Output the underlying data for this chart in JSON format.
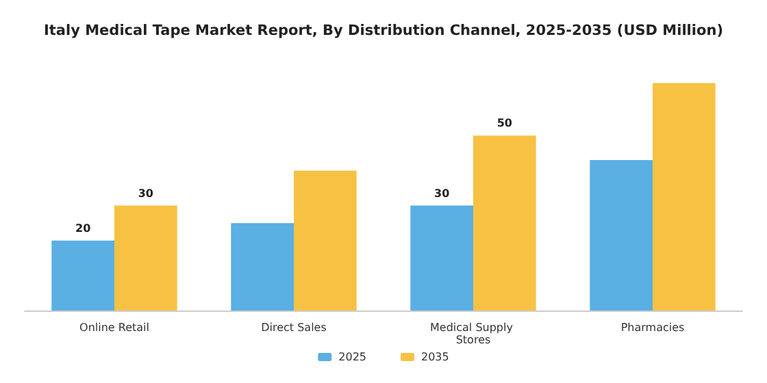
{
  "chart_data": {
    "type": "bar",
    "title": "Italy Medical Tape Market Report, By Distribution Channel, 2025-2035 (USD Million)",
    "categories": [
      "Online Retail",
      "Direct Sales",
      "Medical Supply Stores",
      "Pharmacies"
    ],
    "series": [
      {
        "name": "2025",
        "color": "#5aafe3",
        "values": [
          20,
          25,
          30,
          43
        ],
        "value_labels": [
          "20",
          null,
          "30",
          null
        ]
      },
      {
        "name": "2035",
        "color": "#f7c244",
        "values": [
          30,
          40,
          50,
          65
        ],
        "value_labels": [
          "30",
          null,
          "50",
          null
        ]
      }
    ],
    "legend": "bottom"
  }
}
